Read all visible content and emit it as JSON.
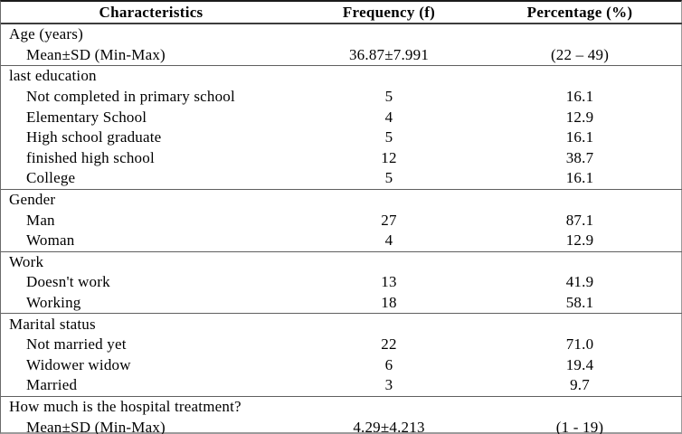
{
  "table": {
    "columns": [
      "Characteristics",
      "Frequency (f)",
      "Percentage (%)"
    ],
    "sections": [
      {
        "header": "Age (years)",
        "rows": [
          {
            "label": "Mean±SD (Min-Max)",
            "frequency": "36.87±7.991",
            "percentage": "(22 – 49)"
          }
        ]
      },
      {
        "header": "last education",
        "rows": [
          {
            "label": "Not completed in primary school",
            "frequency": "5",
            "percentage": "16.1"
          },
          {
            "label": "Elementary School",
            "frequency": "4",
            "percentage": "12.9"
          },
          {
            "label": "High school graduate",
            "frequency": "5",
            "percentage": "16.1"
          },
          {
            "label": "finished high school",
            "frequency": "12",
            "percentage": "38.7"
          },
          {
            "label": "College",
            "frequency": "5",
            "percentage": "16.1"
          }
        ]
      },
      {
        "header": "Gender",
        "rows": [
          {
            "label": "Man",
            "frequency": "27",
            "percentage": "87.1"
          },
          {
            "label": "Woman",
            "frequency": "4",
            "percentage": "12.9"
          }
        ]
      },
      {
        "header": "Work",
        "rows": [
          {
            "label": "Doesn't work",
            "frequency": "13",
            "percentage": "41.9"
          },
          {
            "label": "Working",
            "frequency": "18",
            "percentage": "58.1"
          }
        ]
      },
      {
        "header": "Marital status",
        "rows": [
          {
            "label": "Not married yet",
            "frequency": "22",
            "percentage": "71.0"
          },
          {
            "label": "Widower widow",
            "frequency": "6",
            "percentage": "19.4"
          },
          {
            "label": "Married",
            "frequency": "3",
            "percentage": "9.7"
          }
        ]
      },
      {
        "header": "How much is the hospital treatment?",
        "rows": [
          {
            "label": "Mean±SD (Min-Max)",
            "frequency": "4.29±4.213",
            "percentage": "(1 - 19)"
          }
        ]
      }
    ]
  },
  "colors": {
    "background": "#ffffff",
    "text": "#000000",
    "rule_dark": "#3d3d3d",
    "rule_gray": "#9b9b9b",
    "rule_section": "#5f5f5f"
  }
}
